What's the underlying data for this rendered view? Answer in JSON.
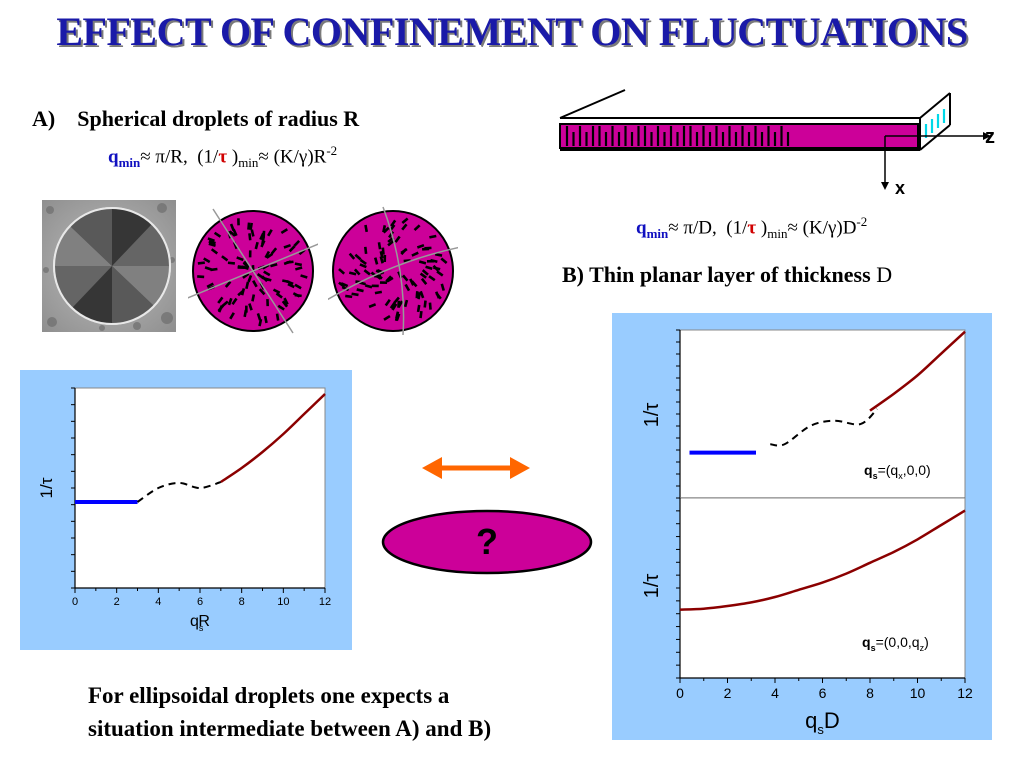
{
  "title": "EFFECT OF CONFINEMENT ON FLUCTUATIONS",
  "section_a": {
    "label": "A)",
    "text": "Spherical droplets of radius R",
    "formula": {
      "q": "q",
      "min": "min",
      "approx1": "≈ π/R,",
      "inv_open": "(1/",
      "tau": "τ",
      "close_min": ")",
      "min2": "min",
      "approx2": "≈ (K/γ)R",
      "exp": "-2"
    }
  },
  "section_b": {
    "text": "B) Thin planar layer of thickness",
    "var": "D",
    "formula": {
      "q": "q",
      "min": "min",
      "approx1": "≈ π/D,",
      "inv_open": "(1/",
      "tau": "τ",
      "close_min": ")",
      "min2": "min",
      "approx2": "≈ (K/γ)D",
      "exp": "-2"
    },
    "axis_z": "z",
    "axis_x": "x"
  },
  "question": "?",
  "conclusion": {
    "line1": "For ellipsoidal droplets one expects a",
    "line2": "situation intermediate between A) and B)"
  },
  "colors": {
    "magenta": "#cc0099",
    "panel": "#99ccff",
    "title": "#1a1aa8",
    "fluct_line": "#8b0000",
    "plateau": "#0000ff",
    "arrow": "#ff6600"
  },
  "chart_data": [
    {
      "type": "line",
      "ylabel": "1/τ",
      "xlabel": "q",
      "xlabel_sub": "s",
      "xlabel_tail": "R",
      "x_ticks": [
        "0",
        "2",
        "4",
        "6",
        "8",
        "10",
        "12"
      ],
      "xlim": [
        0,
        12
      ],
      "series": [
        {
          "style": "solid-blue",
          "x": [
            0,
            3
          ],
          "y": [
            0.43,
            0.43
          ]
        },
        {
          "style": "dashed",
          "x": [
            3,
            4,
            5,
            6,
            7
          ],
          "y": [
            0.43,
            0.5,
            0.525,
            0.5,
            0.53
          ]
        },
        {
          "style": "solid-red",
          "x": [
            7,
            8,
            9,
            10,
            11,
            12
          ],
          "y": [
            0.53,
            0.6,
            0.68,
            0.77,
            0.87,
            0.97
          ]
        }
      ]
    },
    {
      "type": "line",
      "ylabel": "1/τ",
      "legend": {
        "q": "q",
        "sub": "s",
        "value": "=(q",
        "vsub": "x",
        "tail": ",0,0)"
      },
      "series": [
        {
          "style": "solid-blue",
          "x": [
            0.4,
            3.2
          ],
          "y": [
            0.27,
            0.27
          ]
        },
        {
          "style": "dashed",
          "x": [
            3.8,
            4.4,
            5.5,
            6.5,
            7.6,
            8.3
          ],
          "y": [
            0.32,
            0.32,
            0.43,
            0.46,
            0.44,
            0.53
          ]
        },
        {
          "style": "solid-red",
          "x": [
            8.0,
            9,
            10,
            11,
            12
          ],
          "y": [
            0.52,
            0.62,
            0.73,
            0.86,
            0.99
          ]
        }
      ]
    },
    {
      "type": "line",
      "ylabel": "1/τ",
      "xlabel": "q",
      "xlabel_sub": "s",
      "xlabel_tail": "D",
      "x_ticks": [
        "0",
        "2",
        "4",
        "6",
        "8",
        "10",
        "12"
      ],
      "xlim": [
        0,
        12
      ],
      "legend": {
        "q": "q",
        "sub": "s",
        "value": "=(0,0,q",
        "vsub": "z",
        "tail": ")"
      },
      "series": [
        {
          "style": "solid-red",
          "x": [
            0,
            1,
            2,
            3,
            4,
            5,
            6,
            7,
            8,
            9,
            10,
            11,
            12
          ],
          "y": [
            0.38,
            0.385,
            0.4,
            0.42,
            0.45,
            0.49,
            0.53,
            0.58,
            0.64,
            0.7,
            0.77,
            0.85,
            0.93
          ]
        }
      ]
    }
  ]
}
